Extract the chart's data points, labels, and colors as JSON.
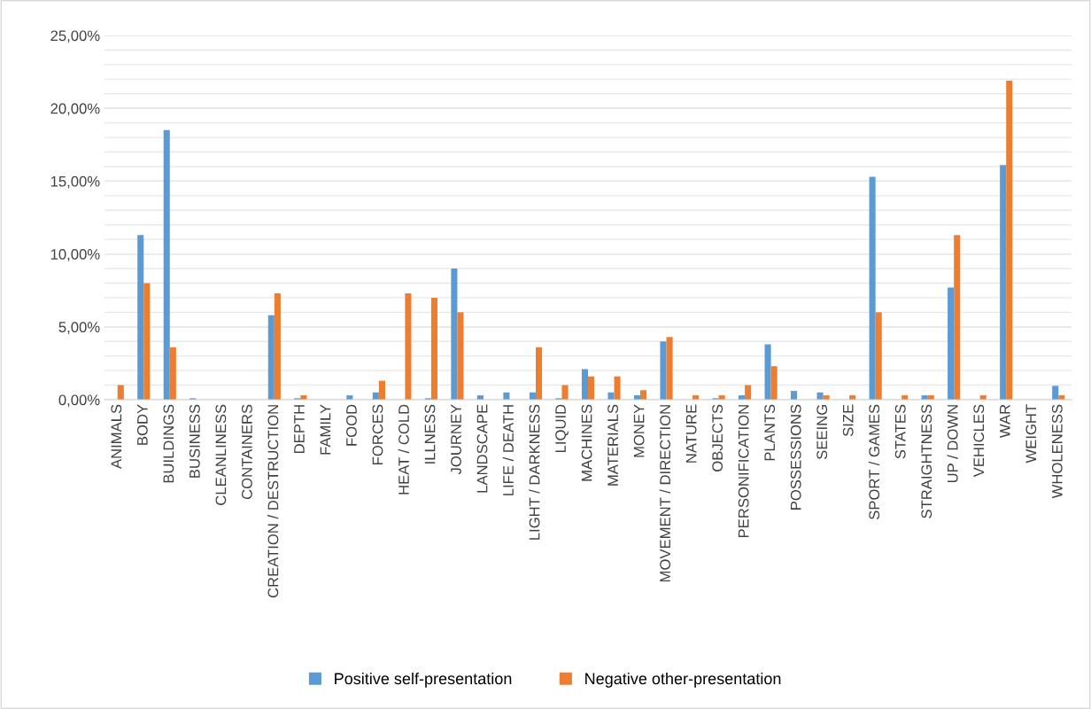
{
  "chart_data": {
    "type": "bar",
    "categories": [
      "ANIMALS",
      "BODY",
      "BUILDINGS",
      "BUSINESS",
      "CLEANLINESS",
      "CONTAINERS",
      "CREATION / DESTRUCTION",
      "DEPTH",
      "FAMILY",
      "FOOD",
      "FORCES",
      "HEAT / COLD",
      "ILLNESS",
      "JOURNEY",
      "LANDSCAPE",
      "LIFE / DEATH",
      "LIGHT / DARKNESS",
      "LIQUID",
      "MACHINES",
      "MATERIALS",
      "MONEY",
      "MOVEMENT / DIRECTION",
      "NATURE",
      "OBJECTS",
      "PERSONIFICATION",
      "PLANTS",
      "POSSESSIONS",
      "SEEING",
      "SIZE",
      "SPORT / GAMES",
      "STATES",
      "STRAIGHTNESS",
      "UP / DOWN",
      "VEHICLES",
      "WAR",
      "WEIGHT",
      "WHOLENESS"
    ],
    "series": [
      {
        "name": "Positive self-presentation",
        "color": "#5b9bd5",
        "values": [
          0,
          11.3,
          18.5,
          0.1,
          0,
          0,
          5.8,
          0.1,
          0,
          0.3,
          0.5,
          0,
          0.1,
          9.0,
          0.3,
          0.5,
          0.5,
          0.1,
          2.1,
          0.5,
          0.3,
          4.0,
          0,
          0.1,
          0.3,
          3.8,
          0.6,
          0.5,
          0,
          15.3,
          0,
          0.3,
          7.7,
          0,
          16.1,
          0,
          0.95
        ]
      },
      {
        "name": "Negative other-presentation",
        "color": "#ed7d31",
        "values": [
          1.0,
          8.0,
          3.6,
          0,
          0,
          0,
          7.3,
          0.3,
          0,
          0,
          1.3,
          7.3,
          7.0,
          6.0,
          0,
          0,
          3.6,
          1.0,
          1.6,
          1.6,
          0.65,
          4.3,
          0.3,
          0.3,
          1.0,
          2.3,
          0,
          0.3,
          0.3,
          6.0,
          0.3,
          0.3,
          11.3,
          0.3,
          21.9,
          0,
          0.3
        ]
      }
    ],
    "ylim": [
      0,
      25
    ],
    "yticks": [
      {
        "value": 0,
        "label": "0,00%"
      },
      {
        "value": 1,
        "label": null
      },
      {
        "value": 2,
        "label": null
      },
      {
        "value": 3,
        "label": null
      },
      {
        "value": 4,
        "label": null
      },
      {
        "value": 5,
        "label": "5,00%"
      },
      {
        "value": 6,
        "label": null
      },
      {
        "value": 7,
        "label": null
      },
      {
        "value": 8,
        "label": null
      },
      {
        "value": 9,
        "label": null
      },
      {
        "value": 10,
        "label": "10,00%"
      },
      {
        "value": 11,
        "label": null
      },
      {
        "value": 12,
        "label": null
      },
      {
        "value": 13,
        "label": null
      },
      {
        "value": 14,
        "label": null
      },
      {
        "value": 15,
        "label": "15,00%"
      },
      {
        "value": 16,
        "label": null
      },
      {
        "value": 17,
        "label": null
      },
      {
        "value": 18,
        "label": null
      },
      {
        "value": 19,
        "label": null
      },
      {
        "value": 20,
        "label": "20,00%"
      },
      {
        "value": 21,
        "label": null
      },
      {
        "value": 22,
        "label": null
      },
      {
        "value": 23,
        "label": null
      },
      {
        "value": 24,
        "label": null
      },
      {
        "value": 25,
        "label": "25,00%"
      }
    ],
    "grid": "y",
    "legend": "bottom"
  }
}
